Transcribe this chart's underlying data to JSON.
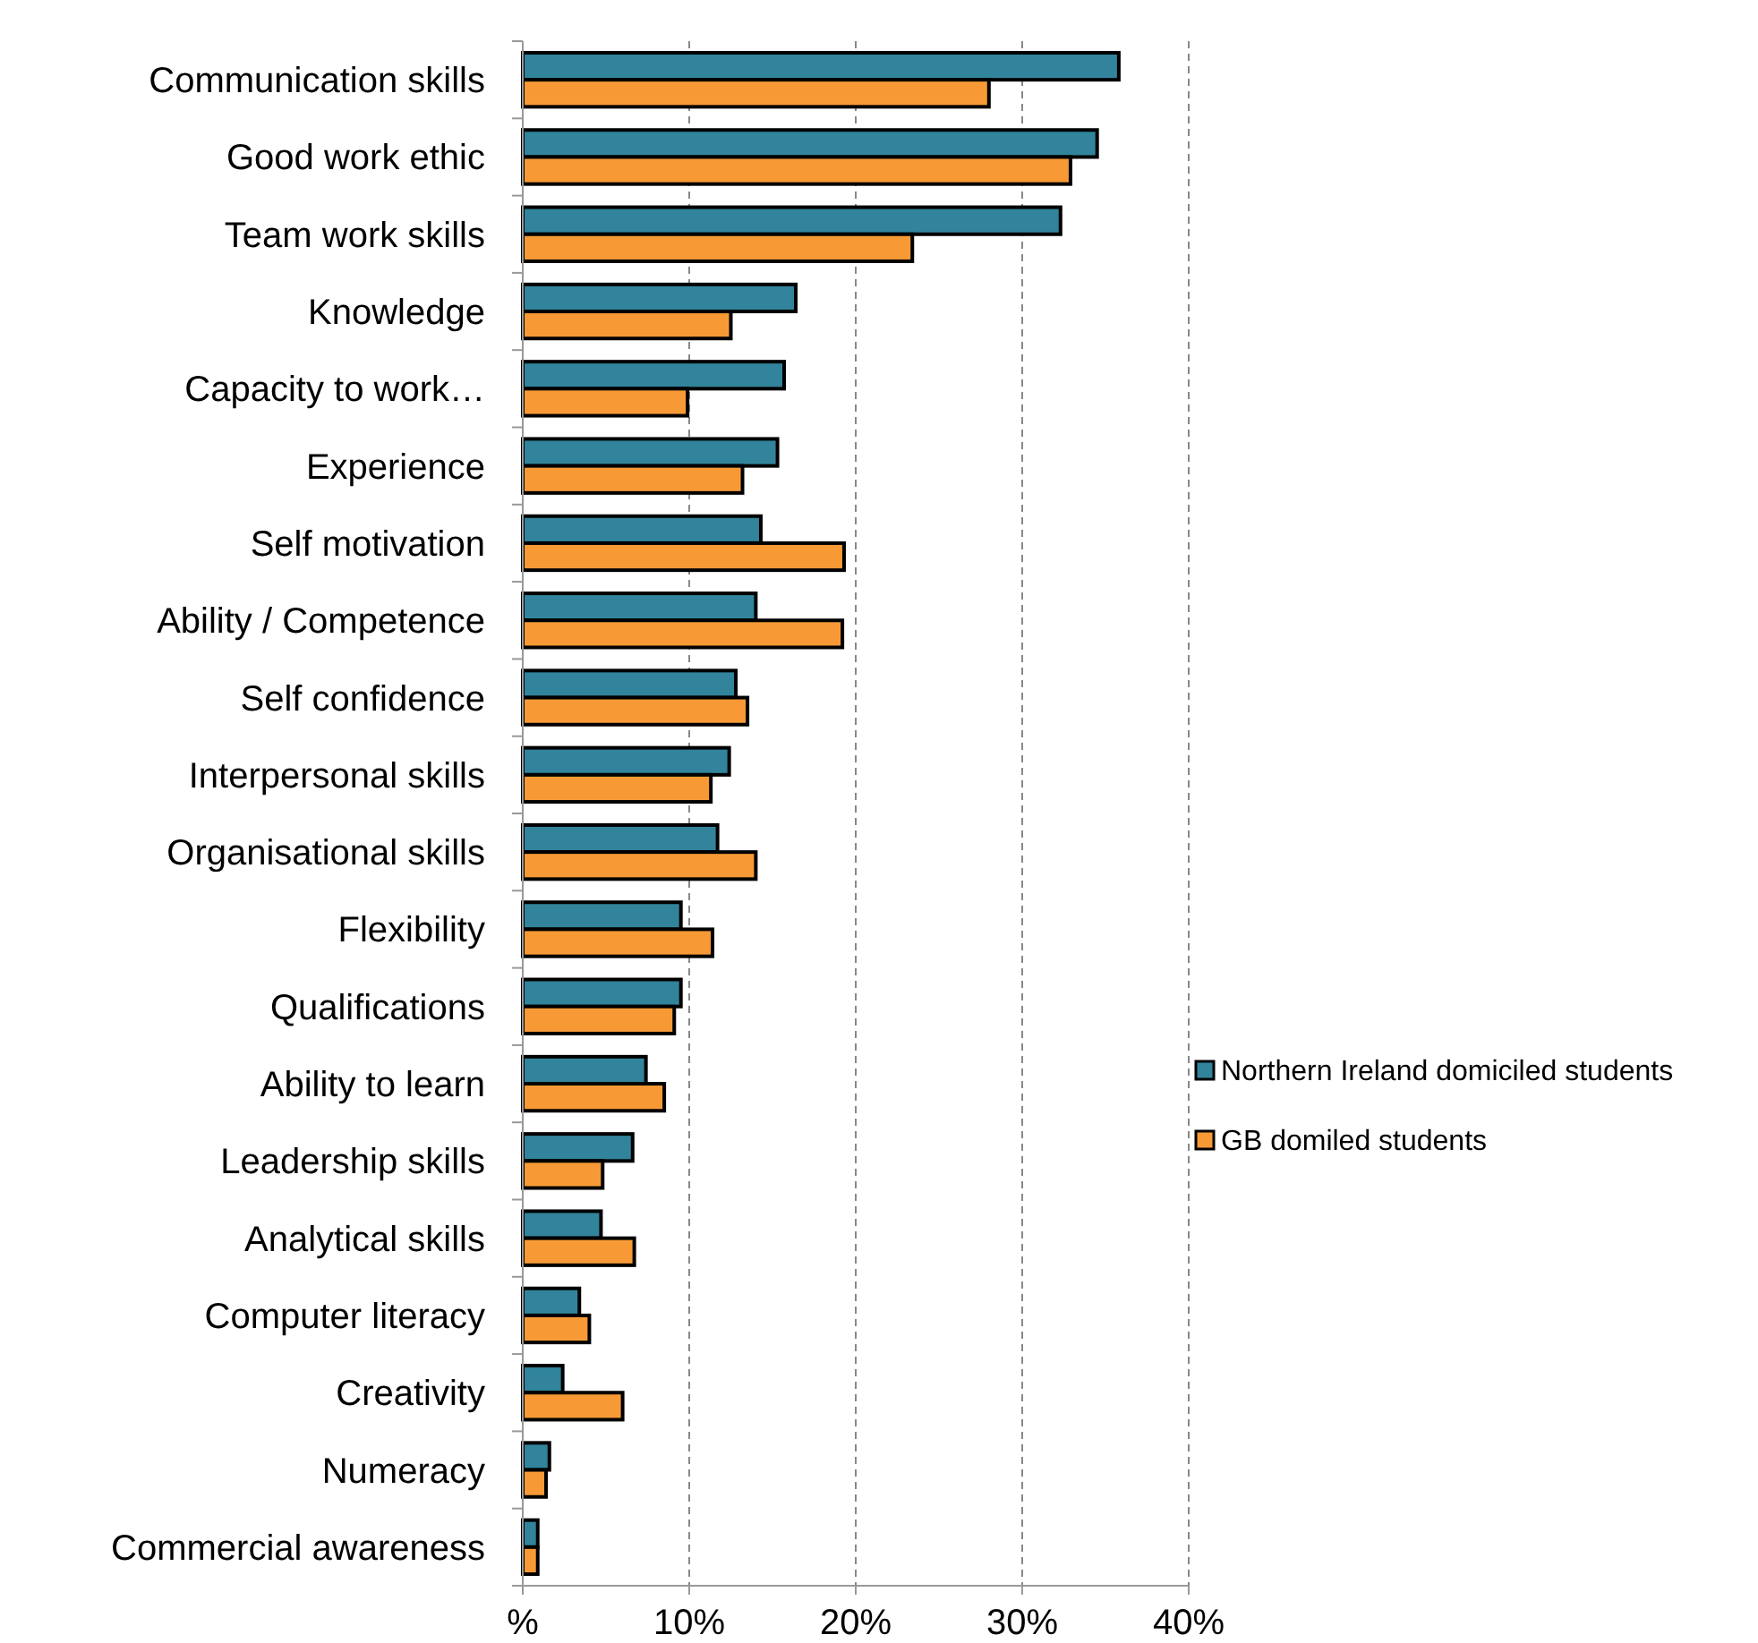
{
  "chart_data": {
    "type": "bar",
    "orientation": "horizontal",
    "categories": [
      "Communication skills",
      "Good work ethic",
      "Team work skills",
      "Knowledge",
      "Capacity to work…",
      "Experience",
      "Self motivation",
      "Ability / Competence",
      "Self confidence",
      "Interpersonal skills",
      "Organisational skills",
      "Flexibility",
      "Qualifications",
      "Ability to learn",
      "Leadership skills",
      "Analytical skills",
      "Computer literacy",
      "Creativity",
      "Numeracy",
      "Commercial awareness"
    ],
    "series": [
      {
        "name": "Northern Ireland domiciled students",
        "color": "#31849b",
        "values": [
          35.8,
          34.5,
          32.3,
          16.4,
          15.7,
          15.3,
          14.3,
          14.0,
          12.8,
          12.4,
          11.7,
          9.5,
          9.5,
          7.4,
          6.6,
          4.7,
          3.4,
          2.4,
          1.6,
          0.9
        ]
      },
      {
        "name": "GB domiled students",
        "color": "#f79a36",
        "values": [
          28.0,
          32.9,
          23.4,
          12.5,
          9.9,
          13.2,
          19.3,
          19.2,
          13.5,
          11.3,
          14.0,
          11.4,
          9.1,
          8.5,
          4.8,
          6.7,
          4.0,
          6.0,
          1.4,
          0.9
        ]
      }
    ],
    "xlim": [
      0,
      40
    ],
    "xticks": [
      {
        "value": 0,
        "label": "%"
      },
      {
        "value": 10,
        "label": "10%"
      },
      {
        "value": 20,
        "label": "20%"
      },
      {
        "value": 30,
        "label": "30%"
      },
      {
        "value": 40,
        "label": "40%"
      }
    ],
    "grid": "x",
    "legend": "right"
  }
}
